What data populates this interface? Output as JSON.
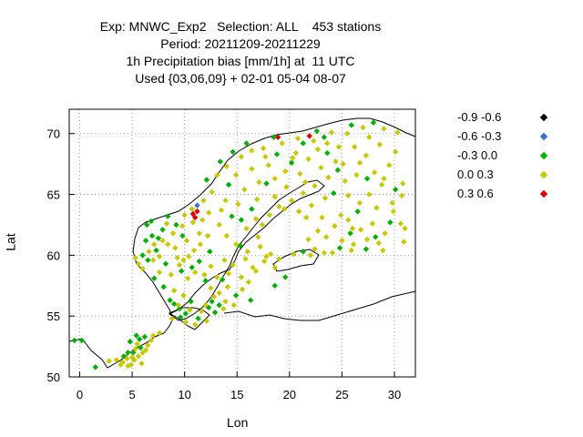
{
  "title_lines": [
    "Exp: MNWC_Exp2   Selection: ALL    453 stations",
    "Period: 20211209-20211229",
    "1h Precipitation bias [mm/1h] at  11 UTC",
    "Used {03,06,09} + 02-01 05-04 08-07"
  ],
  "chart_data": {
    "type": "scatter",
    "xlabel": "Lon",
    "ylabel": "Lat",
    "xlim": [
      -1,
      32
    ],
    "ylim": [
      50,
      72
    ],
    "xticks": [
      0,
      5,
      10,
      15,
      20,
      25,
      30
    ],
    "yticks": [
      50,
      55,
      60,
      65,
      70
    ],
    "grid": true,
    "legend_position": "right",
    "series": [
      {
        "name": "-0.9 -0.6",
        "color": "#000000",
        "points": []
      },
      {
        "name": "-0.6 -0.3",
        "color": "#3a6fd8",
        "points": [
          [
            11.2,
            64.1
          ]
        ]
      },
      {
        "name": "-0.3 0.0",
        "color": "#00b000",
        "points": [
          [
            -0.5,
            53.0
          ],
          [
            0.2,
            53.0
          ],
          [
            1.5,
            50.8
          ],
          [
            4.2,
            51.7
          ],
          [
            4.6,
            52.0
          ],
          [
            5.1,
            52.0
          ],
          [
            5.8,
            52.4
          ],
          [
            6.2,
            53.3
          ],
          [
            4.8,
            52.9
          ],
          [
            5.4,
            53.4
          ],
          [
            5.7,
            53.1
          ],
          [
            6.0,
            60.0
          ],
          [
            6.5,
            59.6
          ],
          [
            6.3,
            61.2
          ],
          [
            6.9,
            61.6
          ],
          [
            6.4,
            62.5
          ],
          [
            6.8,
            62.8
          ],
          [
            7.3,
            60.4
          ],
          [
            7.5,
            61.4
          ],
          [
            7.9,
            62.1
          ],
          [
            8.4,
            63.2
          ],
          [
            8.2,
            59.3
          ],
          [
            9.2,
            62.5
          ],
          [
            9.8,
            61.6
          ],
          [
            8.0,
            57.4
          ],
          [
            8.6,
            56.3
          ],
          [
            9.0,
            56.0
          ],
          [
            9.5,
            55.6
          ],
          [
            10.1,
            55.2
          ],
          [
            9.6,
            54.9
          ],
          [
            10.6,
            56.2
          ],
          [
            11.3,
            54.8
          ],
          [
            12.3,
            55.7
          ],
          [
            12.6,
            56.2
          ],
          [
            12.9,
            55.3
          ],
          [
            13.3,
            55.9
          ],
          [
            12.4,
            60.3
          ],
          [
            11.4,
            59.5
          ],
          [
            13.6,
            58.0
          ],
          [
            15.3,
            60.8
          ],
          [
            14.5,
            63.2
          ],
          [
            15.4,
            62.9
          ],
          [
            16.4,
            63.8
          ],
          [
            17.8,
            65.9
          ],
          [
            20.2,
            67.6
          ],
          [
            18.8,
            68.3
          ],
          [
            14.6,
            68.5
          ],
          [
            13.4,
            67.7
          ],
          [
            12.1,
            66.2
          ],
          [
            15.9,
            69.2
          ],
          [
            18.5,
            69.7
          ],
          [
            21.3,
            69.2
          ],
          [
            22.6,
            70.2
          ],
          [
            23.3,
            69.7
          ],
          [
            25.9,
            70.7
          ],
          [
            28.0,
            70.9
          ],
          [
            23.6,
            68.4
          ],
          [
            24.6,
            67.0
          ],
          [
            27.4,
            66.3
          ],
          [
            30.1,
            65.4
          ],
          [
            25.8,
            61.8
          ],
          [
            28.2,
            61.5
          ],
          [
            29.6,
            62.7
          ],
          [
            27.3,
            60.5
          ],
          [
            24.8,
            60.6
          ],
          [
            21.3,
            60.3
          ],
          [
            24.2,
            65.1
          ],
          [
            19.6,
            58.2
          ],
          [
            18.6,
            57.5
          ],
          [
            26.5,
            63.6
          ],
          [
            14.2,
            65.8
          ],
          [
            9.7,
            58.7
          ],
          [
            10.7,
            59.0
          ],
          [
            7.1,
            58.1
          ],
          [
            16.3,
            56.3
          ],
          [
            14.9,
            56.7
          ],
          [
            12.0,
            57.9
          ]
        ]
      },
      {
        "name": "0.0 0.3",
        "color": "#c8c800",
        "points": [
          [
            2.8,
            51.3
          ],
          [
            3.5,
            51.4
          ],
          [
            4.1,
            51.2
          ],
          [
            4.5,
            51.5
          ],
          [
            5.2,
            51.4
          ],
          [
            5.6,
            51.7
          ],
          [
            5.3,
            52.3
          ],
          [
            6.0,
            52.0
          ],
          [
            6.5,
            52.6
          ],
          [
            5.5,
            52.7
          ],
          [
            4.9,
            51.0
          ],
          [
            5.0,
            51.6
          ],
          [
            6.3,
            52.2
          ],
          [
            7.0,
            53.4
          ],
          [
            5.9,
            51.1
          ],
          [
            4.6,
            50.9
          ],
          [
            5.3,
            59.8
          ],
          [
            6.0,
            58.9
          ],
          [
            5.6,
            59.3
          ],
          [
            7.6,
            58.6
          ],
          [
            8.7,
            58.4
          ],
          [
            9.5,
            59.2
          ],
          [
            9.3,
            59.8
          ],
          [
            10.4,
            59.9
          ],
          [
            10.9,
            60.4
          ],
          [
            11.5,
            60.9
          ],
          [
            12.2,
            61.6
          ],
          [
            10.2,
            61.2
          ],
          [
            9.1,
            60.6
          ],
          [
            8.4,
            60.9
          ],
          [
            7.6,
            59.9
          ],
          [
            7.0,
            59.6
          ],
          [
            7.1,
            60.9
          ],
          [
            8.3,
            62.6
          ],
          [
            9.8,
            62.4
          ],
          [
            10.8,
            62.7
          ],
          [
            11.7,
            62.9
          ],
          [
            12.3,
            63.5
          ],
          [
            10.7,
            63.8
          ],
          [
            10.0,
            63.3
          ],
          [
            11.8,
            64.5
          ],
          [
            12.6,
            65.2
          ],
          [
            13.1,
            66.6
          ],
          [
            14.0,
            67.3
          ],
          [
            15.4,
            68.1
          ],
          [
            16.4,
            68.6
          ],
          [
            17.5,
            68.8
          ],
          [
            19.3,
            69.2
          ],
          [
            20.8,
            69.6
          ],
          [
            22.3,
            69.4
          ],
          [
            24.0,
            70.1
          ],
          [
            25.5,
            70.0
          ],
          [
            27.0,
            70.5
          ],
          [
            29.0,
            70.4
          ],
          [
            30.3,
            70.1
          ],
          [
            28.6,
            69.1
          ],
          [
            26.2,
            68.9
          ],
          [
            27.3,
            68.2
          ],
          [
            25.1,
            67.5
          ],
          [
            26.4,
            66.6
          ],
          [
            28.1,
            66.8
          ],
          [
            29.5,
            67.4
          ],
          [
            28.8,
            65.8
          ],
          [
            27.6,
            65.0
          ],
          [
            29.8,
            64.3
          ],
          [
            28.3,
            63.9
          ],
          [
            30.6,
            62.6
          ],
          [
            29.1,
            61.8
          ],
          [
            30.9,
            61.1
          ],
          [
            27.9,
            62.6
          ],
          [
            26.8,
            62.1
          ],
          [
            25.6,
            62.9
          ],
          [
            24.3,
            62.4
          ],
          [
            23.1,
            63.1
          ],
          [
            22.7,
            62.0
          ],
          [
            23.5,
            61.5
          ],
          [
            25.0,
            61.2
          ],
          [
            26.1,
            60.9
          ],
          [
            28.9,
            60.4
          ],
          [
            24.1,
            60.2
          ],
          [
            22.4,
            60.5
          ],
          [
            21.8,
            61.3
          ],
          [
            21.6,
            63.1
          ],
          [
            22.1,
            64.1
          ],
          [
            23.4,
            64.7
          ],
          [
            25.6,
            64.9
          ],
          [
            26.7,
            64.3
          ],
          [
            25.3,
            66.1
          ],
          [
            23.7,
            66.4
          ],
          [
            22.4,
            65.7
          ],
          [
            21.3,
            65.1
          ],
          [
            20.2,
            64.5
          ],
          [
            19.0,
            64.0
          ],
          [
            18.1,
            63.3
          ],
          [
            17.4,
            62.5
          ],
          [
            17.0,
            61.5
          ],
          [
            17.2,
            60.7
          ],
          [
            18.2,
            60.1
          ],
          [
            17.6,
            59.5
          ],
          [
            18.6,
            59.0
          ],
          [
            16.8,
            58.7
          ],
          [
            16.1,
            57.8
          ],
          [
            15.5,
            57.2
          ],
          [
            14.1,
            57.4
          ],
          [
            13.3,
            56.9
          ],
          [
            13.7,
            55.6
          ],
          [
            12.8,
            56.6
          ],
          [
            11.9,
            58.4
          ],
          [
            12.5,
            59.1
          ],
          [
            13.8,
            59.6
          ],
          [
            14.6,
            59.2
          ],
          [
            15.8,
            59.7
          ],
          [
            16.0,
            60.3
          ],
          [
            14.9,
            60.9
          ],
          [
            14.0,
            61.6
          ],
          [
            13.3,
            62.5
          ],
          [
            15.9,
            62.2
          ],
          [
            16.8,
            63.0
          ],
          [
            15.1,
            64.2
          ],
          [
            16.9,
            64.6
          ],
          [
            18.6,
            64.8
          ],
          [
            19.7,
            65.6
          ],
          [
            18.6,
            66.3
          ],
          [
            17.1,
            66.0
          ],
          [
            15.7,
            65.4
          ],
          [
            14.9,
            66.6
          ],
          [
            16.4,
            67.1
          ],
          [
            18.0,
            67.4
          ],
          [
            19.6,
            66.9
          ],
          [
            21.0,
            66.7
          ],
          [
            21.8,
            67.9
          ],
          [
            20.6,
            68.4
          ],
          [
            22.7,
            68.7
          ],
          [
            24.7,
            68.9
          ],
          [
            17.7,
            68.1
          ],
          [
            13.9,
            64.5
          ],
          [
            13.5,
            63.7
          ],
          [
            11.4,
            61.8
          ],
          [
            8.9,
            61.8
          ],
          [
            7.9,
            61.2
          ],
          [
            6.6,
            60.3
          ],
          [
            9.9,
            59.6
          ],
          [
            11.0,
            58.6
          ],
          [
            10.3,
            58.1
          ],
          [
            9.0,
            57.1
          ],
          [
            9.9,
            56.7
          ],
          [
            9.4,
            55.9
          ],
          [
            10.5,
            55.5
          ],
          [
            11.6,
            55.4
          ],
          [
            12.1,
            54.6
          ],
          [
            11.0,
            54.3
          ],
          [
            10.1,
            54.5
          ],
          [
            8.8,
            54.8
          ],
          [
            12.5,
            57.3
          ],
          [
            14.2,
            58.5
          ],
          [
            15.4,
            58.2
          ],
          [
            17.8,
            59.9
          ],
          [
            19.5,
            63.8
          ],
          [
            20.9,
            63.6
          ],
          [
            24.9,
            63.3
          ],
          [
            26.0,
            62.2
          ],
          [
            29.9,
            63.6
          ],
          [
            30.8,
            65.9
          ],
          [
            30.1,
            68.5
          ],
          [
            27.6,
            69.7
          ],
          [
            23.6,
            69.2
          ],
          [
            20.3,
            68.0
          ],
          [
            21.5,
            66.0
          ],
          [
            23.0,
            67.2
          ],
          [
            24.4,
            67.7
          ],
          [
            26.7,
            67.6
          ],
          [
            29.0,
            66.3
          ],
          [
            30.7,
            64.9
          ],
          [
            31.0,
            62.2
          ],
          [
            28.5,
            61.0
          ],
          [
            27.4,
            61.3
          ],
          [
            25.9,
            60.4
          ],
          [
            23.3,
            60.2
          ],
          [
            22.0,
            60.0
          ],
          [
            20.4,
            60.1
          ],
          [
            19.0,
            59.7
          ],
          [
            16.5,
            59.0
          ],
          [
            13.1,
            58.2
          ],
          [
            14.7,
            55.9
          ],
          [
            13.9,
            56.2
          ],
          [
            12.0,
            55.9
          ],
          [
            7.6,
            53.6
          ],
          [
            6.8,
            53.0
          ],
          [
            3.9,
            51.0
          ]
        ]
      },
      {
        "name": "0.3 0.6",
        "color": "#e00000",
        "points": [
          [
            10.8,
            63.4
          ],
          [
            11.2,
            63.6
          ],
          [
            11.0,
            63.1
          ],
          [
            18.9,
            69.7
          ],
          [
            21.9,
            69.8
          ]
        ]
      }
    ]
  }
}
